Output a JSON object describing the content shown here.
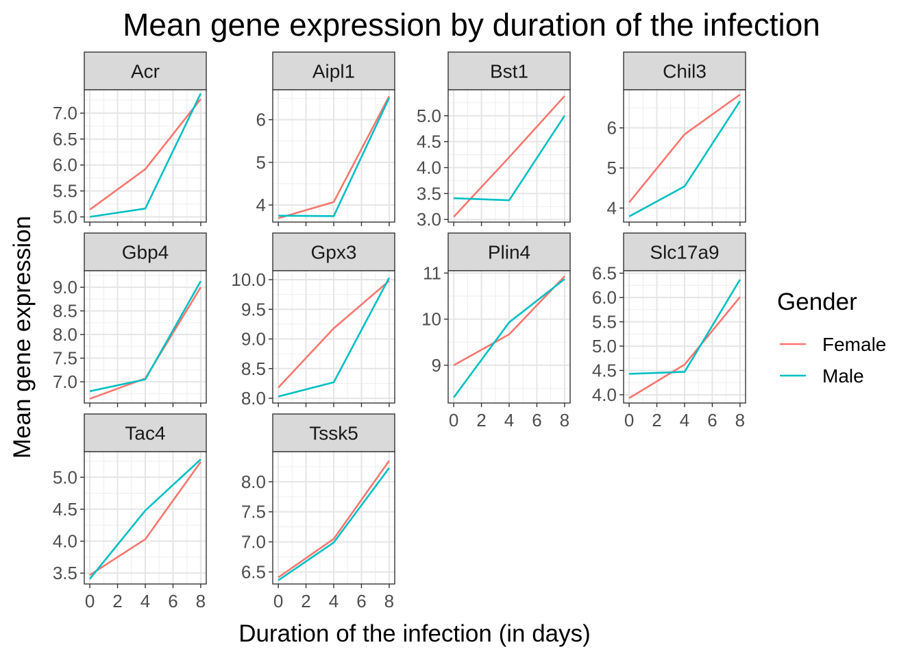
{
  "chart_data": {
    "type": "line",
    "title": "Mean gene expression by duration of the infection",
    "xlabel": "Duration of the infection (in days)",
    "ylabel": "Mean gene expression",
    "x": [
      0,
      4,
      8
    ],
    "x_ticks": [
      "0",
      "2",
      "4",
      "6",
      "8"
    ],
    "xlim": [
      -0.4,
      8.4
    ],
    "grid": true,
    "legend": {
      "title": "Gender",
      "position": "right",
      "entries": [
        {
          "name": "Female",
          "color": "#F8766D"
        },
        {
          "name": "Male",
          "color": "#00BFC4"
        }
      ]
    },
    "panels": [
      {
        "name": "Acr",
        "ylim": [
          4.9,
          7.45
        ],
        "y_ticks": [
          "5.0",
          "5.5",
          "6.0",
          "6.5",
          "7.0"
        ],
        "series": [
          {
            "name": "Female",
            "values": [
              5.14,
              5.92,
              7.27
            ]
          },
          {
            "name": "Male",
            "values": [
              5.0,
              5.16,
              7.38
            ]
          }
        ]
      },
      {
        "name": "Aipl1",
        "ylim": [
          3.6,
          6.7
        ],
        "y_ticks": [
          "4",
          "5",
          "6"
        ],
        "series": [
          {
            "name": "Female",
            "values": [
              3.69,
              4.07,
              6.55
            ]
          },
          {
            "name": "Male",
            "values": [
              3.75,
              3.74,
              6.51
            ]
          }
        ]
      },
      {
        "name": "Bst1",
        "ylim": [
          2.95,
          5.5
        ],
        "y_ticks": [
          "3.0",
          "3.5",
          "4.0",
          "4.5",
          "5.0"
        ],
        "series": [
          {
            "name": "Female",
            "values": [
              3.05,
              4.2,
              5.38
            ]
          },
          {
            "name": "Male",
            "values": [
              3.41,
              3.37,
              5.0
            ]
          }
        ]
      },
      {
        "name": "Chil3",
        "ylim": [
          3.65,
          6.95
        ],
        "y_ticks": [
          "4",
          "5",
          "6"
        ],
        "series": [
          {
            "name": "Female",
            "values": [
              4.14,
              5.84,
              6.83
            ]
          },
          {
            "name": "Male",
            "values": [
              3.79,
              4.54,
              6.67
            ]
          }
        ]
      },
      {
        "name": "Gbp4",
        "ylim": [
          6.55,
          9.35
        ],
        "y_ticks": [
          "7.0",
          "7.5",
          "8.0",
          "8.5",
          "9.0"
        ],
        "series": [
          {
            "name": "Female",
            "values": [
              6.64,
              7.07,
              9.0
            ]
          },
          {
            "name": "Male",
            "values": [
              6.8,
              7.05,
              9.13
            ]
          }
        ]
      },
      {
        "name": "Gpx3",
        "ylim": [
          7.92,
          10.15
        ],
        "y_ticks": [
          "8.0",
          "8.5",
          "9.0",
          "9.5",
          "10.0"
        ],
        "series": [
          {
            "name": "Female",
            "values": [
              8.18,
              9.18,
              9.98
            ]
          },
          {
            "name": "Male",
            "values": [
              8.03,
              8.27,
              10.03
            ]
          }
        ]
      },
      {
        "name": "Plin4",
        "ylim": [
          8.18,
          11.05
        ],
        "y_ticks": [
          "9",
          "10",
          "11"
        ],
        "series": [
          {
            "name": "Female",
            "values": [
              9.0,
              9.67,
              10.93
            ]
          },
          {
            "name": "Male",
            "values": [
              8.3,
              9.93,
              10.87
            ]
          }
        ]
      },
      {
        "name": "Slc17a9",
        "ylim": [
          3.83,
          6.55
        ],
        "y_ticks": [
          "4.0",
          "4.5",
          "5.0",
          "5.5",
          "6.0",
          "6.5"
        ],
        "series": [
          {
            "name": "Female",
            "values": [
              3.93,
              4.62,
              6.01
            ]
          },
          {
            "name": "Male",
            "values": [
              4.43,
              4.47,
              6.37
            ]
          }
        ]
      },
      {
        "name": "Tac4",
        "ylim": [
          3.33,
          5.4
        ],
        "y_ticks": [
          "3.5",
          "4.0",
          "4.5",
          "5.0"
        ],
        "series": [
          {
            "name": "Female",
            "values": [
              3.47,
              4.03,
              5.24
            ]
          },
          {
            "name": "Male",
            "values": [
              3.41,
              4.48,
              5.28
            ]
          }
        ]
      },
      {
        "name": "Tssk5",
        "ylim": [
          6.3,
          8.5
        ],
        "y_ticks": [
          "6.5",
          "7.0",
          "7.5",
          "8.0"
        ],
        "series": [
          {
            "name": "Female",
            "values": [
              6.41,
              7.05,
              8.35
            ]
          },
          {
            "name": "Male",
            "values": [
              6.36,
              6.99,
              8.23
            ]
          }
        ]
      }
    ]
  }
}
